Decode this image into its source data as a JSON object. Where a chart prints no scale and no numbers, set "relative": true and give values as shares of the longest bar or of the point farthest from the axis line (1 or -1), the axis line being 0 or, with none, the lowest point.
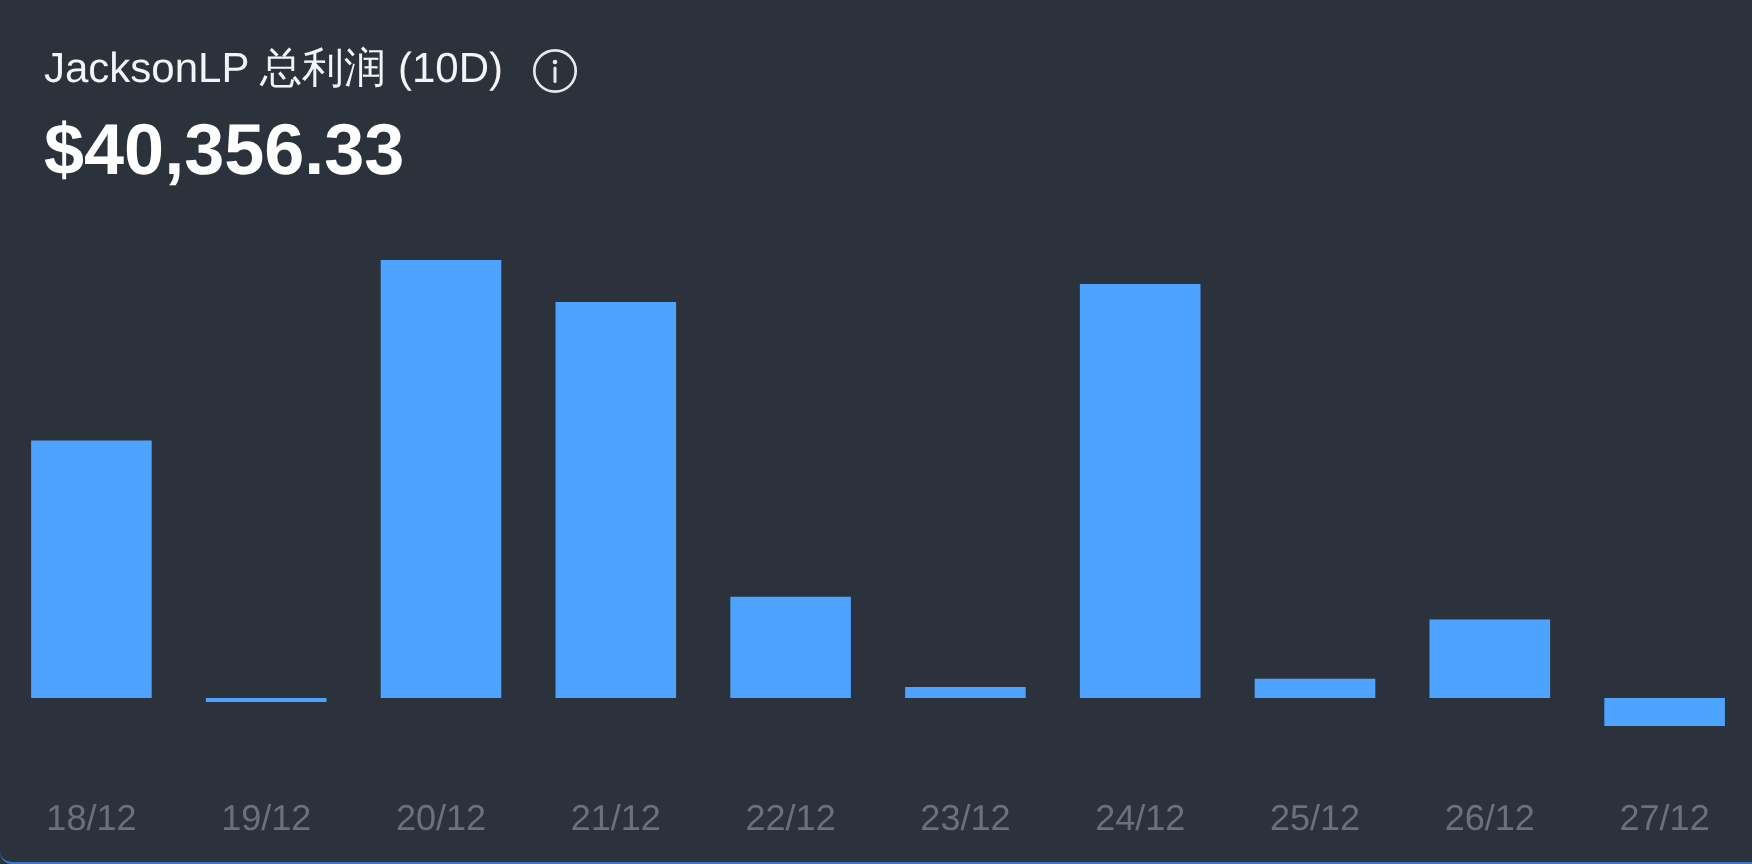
{
  "chart_data": {
    "type": "bar",
    "title": "JacksonLP 总利润 (10D)",
    "subtitle": "$40,356.33",
    "categories": [
      "18/12",
      "19/12",
      "20/12",
      "21/12",
      "22/12",
      "23/12",
      "24/12",
      "25/12",
      "26/12",
      "27/12"
    ],
    "values": [
      0.588,
      -0.009,
      1,
      0.904,
      0.231,
      0.025,
      0.945,
      0.044,
      0.179,
      -0.064
    ],
    "color": "#4da3ff",
    "relative": true
  }
}
